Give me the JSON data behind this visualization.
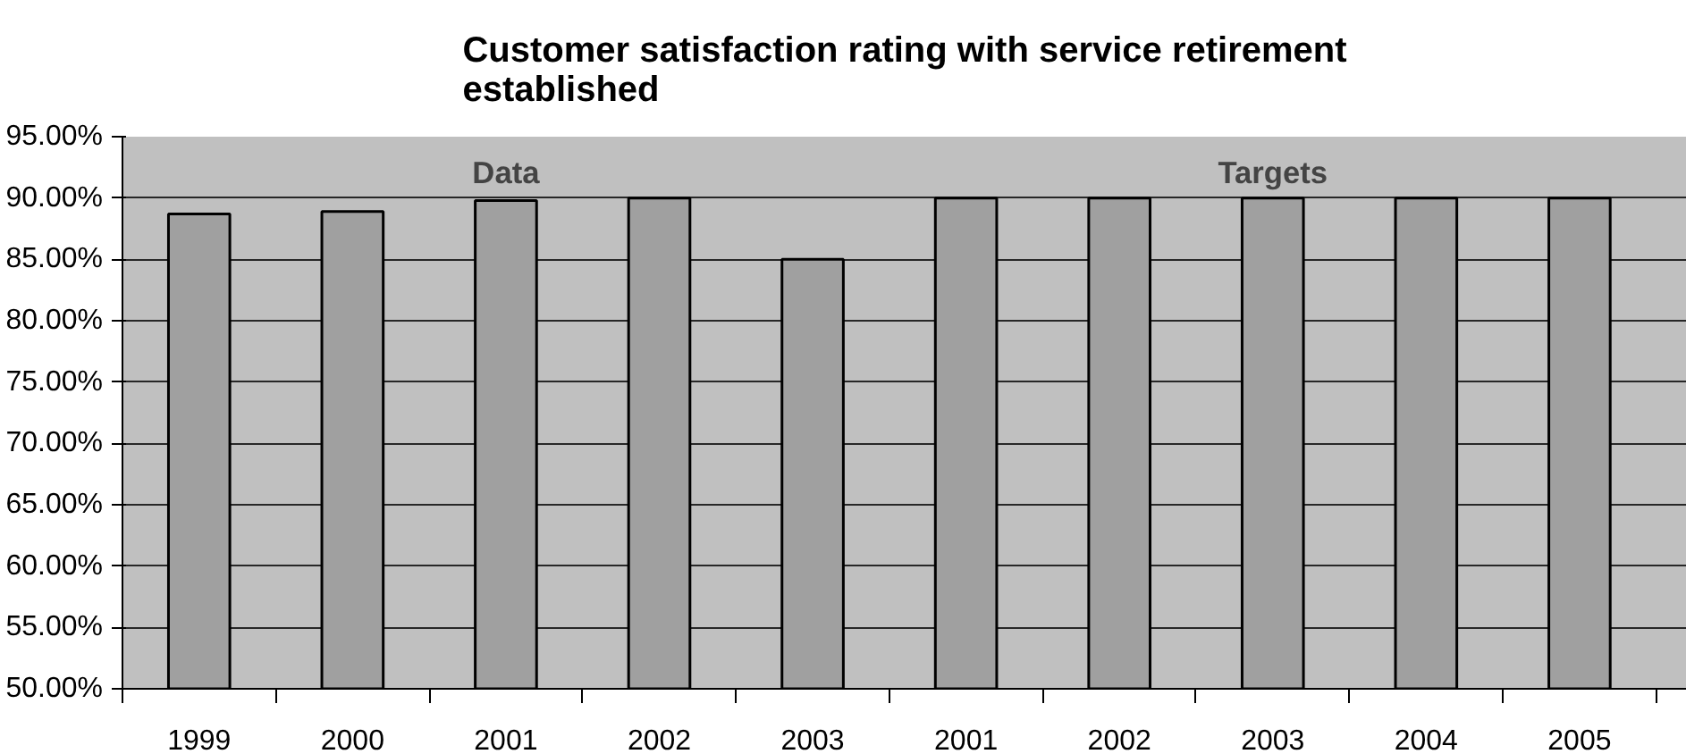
{
  "chart_data": {
    "type": "bar",
    "title": "Customer satisfaction rating with service retirement established",
    "categories": [
      "1999",
      "2000",
      "2001",
      "2002",
      "2003",
      "2001",
      "2002",
      "2003",
      "2004",
      "2005"
    ],
    "values": [
      88.7,
      88.9,
      89.8,
      90.0,
      85.0,
      90.0,
      90.0,
      90.0,
      90.0,
      90.0
    ],
    "color": "#a0a0a0",
    "ylim": [
      50,
      95
    ],
    "yticks": [
      {
        "value": 50,
        "label": "50.00%"
      },
      {
        "value": 55,
        "label": "55.00%"
      },
      {
        "value": 60,
        "label": "60.00%"
      },
      {
        "value": 65,
        "label": "65.00%"
      },
      {
        "value": 70,
        "label": "70.00%"
      },
      {
        "value": 75,
        "label": "75.00%"
      },
      {
        "value": 80,
        "label": "80.00%"
      },
      {
        "value": 85,
        "label": "85.00%"
      },
      {
        "value": 90,
        "label": "90.00%"
      },
      {
        "value": 95,
        "label": "95.00%"
      }
    ],
    "grid": "y",
    "annotations": [
      "Data",
      "Targets"
    ]
  }
}
